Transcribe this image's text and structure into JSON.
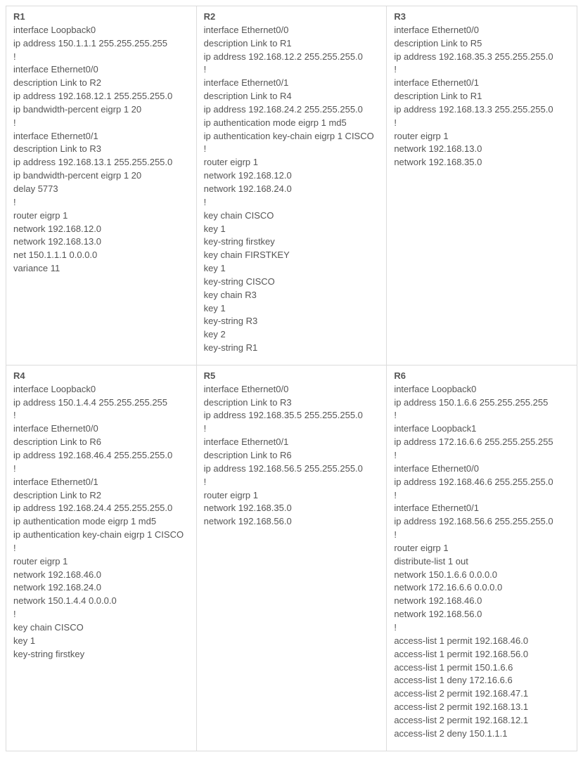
{
  "routers": {
    "r1": {
      "name": "R1",
      "lines": [
        "interface Loopback0",
        "ip address 150.1.1.1 255.255.255.255",
        "!",
        "interface Ethernet0/0",
        "description Link to R2",
        "ip address 192.168.12.1 255.255.255.0",
        "ip bandwidth-percent eigrp 1 20",
        "!",
        "interface Ethernet0/1",
        "description Link to R3",
        "ip address 192.168.13.1 255.255.255.0",
        "ip bandwidth-percent eigrp 1 20",
        "delay 5773",
        "!",
        "router eigrp 1",
        "network 192.168.12.0",
        "network 192.168.13.0",
        "net 150.1.1.1 0.0.0.0",
        "variance 11"
      ]
    },
    "r2": {
      "name": "R2",
      "lines": [
        "interface Ethernet0/0",
        "description Link to R1",
        "ip address 192.168.12.2 255.255.255.0",
        "!",
        "interface Ethernet0/1",
        "description Link to R4",
        "ip address 192.168.24.2 255.255.255.0",
        "ip authentication mode eigrp 1 md5",
        "ip authentication key-chain eigrp 1 CISCO",
        "!",
        "router eigrp 1",
        "network 192.168.12.0",
        "network 192.168.24.0",
        "!",
        "key chain CISCO",
        "key 1",
        "key-string firstkey",
        "key chain FIRSTKEY",
        "key 1",
        "key-string CISCO",
        "key chain R3",
        "key 1",
        "key-string R3",
        "key 2",
        "key-string R1"
      ]
    },
    "r3": {
      "name": "R3",
      "lines": [
        "interface Ethernet0/0",
        "description Link to R5",
        "ip address 192.168.35.3 255.255.255.0",
        "!",
        "interface Ethernet0/1",
        "description Link to R1",
        "ip address 192.168.13.3 255.255.255.0",
        "!",
        "router eigrp 1",
        "network 192.168.13.0",
        "network 192.168.35.0"
      ]
    },
    "r4": {
      "name": "R4",
      "lines": [
        "interface Loopback0",
        "ip address 150.1.4.4 255.255.255.255",
        "!",
        "interface Ethernet0/0",
        "description Link to R6",
        "ip address 192.168.46.4 255.255.255.0",
        "!",
        "interface Ethernet0/1",
        "description Link to R2",
        "ip address 192.168.24.4 255.255.255.0",
        "ip authentication mode eigrp 1 md5",
        "ip authentication key-chain eigrp 1 CISCO",
        "!",
        "router eigrp 1",
        "network 192.168.46.0",
        "network 192.168.24.0",
        "network 150.1.4.4 0.0.0.0",
        "!",
        "key chain CISCO",
        "key 1",
        "key-string firstkey"
      ]
    },
    "r5": {
      "name": "R5",
      "lines": [
        "interface Ethernet0/0",
        "description Link to R3",
        "ip address 192.168.35.5 255.255.255.0",
        "!",
        "interface Ethernet0/1",
        "description Link to R6",
        "ip address 192.168.56.5 255.255.255.0",
        "!",
        "router eigrp 1",
        "network 192.168.35.0",
        "network 192.168.56.0"
      ]
    },
    "r6": {
      "name": "R6",
      "lines": [
        "interface Loopback0",
        "ip address 150.1.6.6 255.255.255.255",
        "!",
        "interface Loopback1",
        "ip address 172.16.6.6 255.255.255.255",
        "!",
        "interface Ethernet0/0",
        "ip address 192.168.46.6 255.255.255.0",
        "!",
        "interface Ethernet0/1",
        "ip address 192.168.56.6 255.255.255.0",
        "!",
        "router eigrp 1",
        "distribute-list 1 out",
        "network 150.1.6.6 0.0.0.0",
        "network 172.16.6.6 0.0.0.0",
        "network 192.168.46.0",
        "network 192.168.56.0",
        "!",
        "access-list 1 permit 192.168.46.0",
        "access-list 1 permit 192.168.56.0",
        "access-list 1 permit 150.1.6.6",
        "access-list 1 deny 172.16.6.6",
        "access-list 2 permit 192.168.47.1",
        "access-list 2 permit 192.168.13.1",
        "access-list 2 permit 192.168.12.1",
        "access-list 2 deny 150.1.1.1"
      ]
    }
  }
}
